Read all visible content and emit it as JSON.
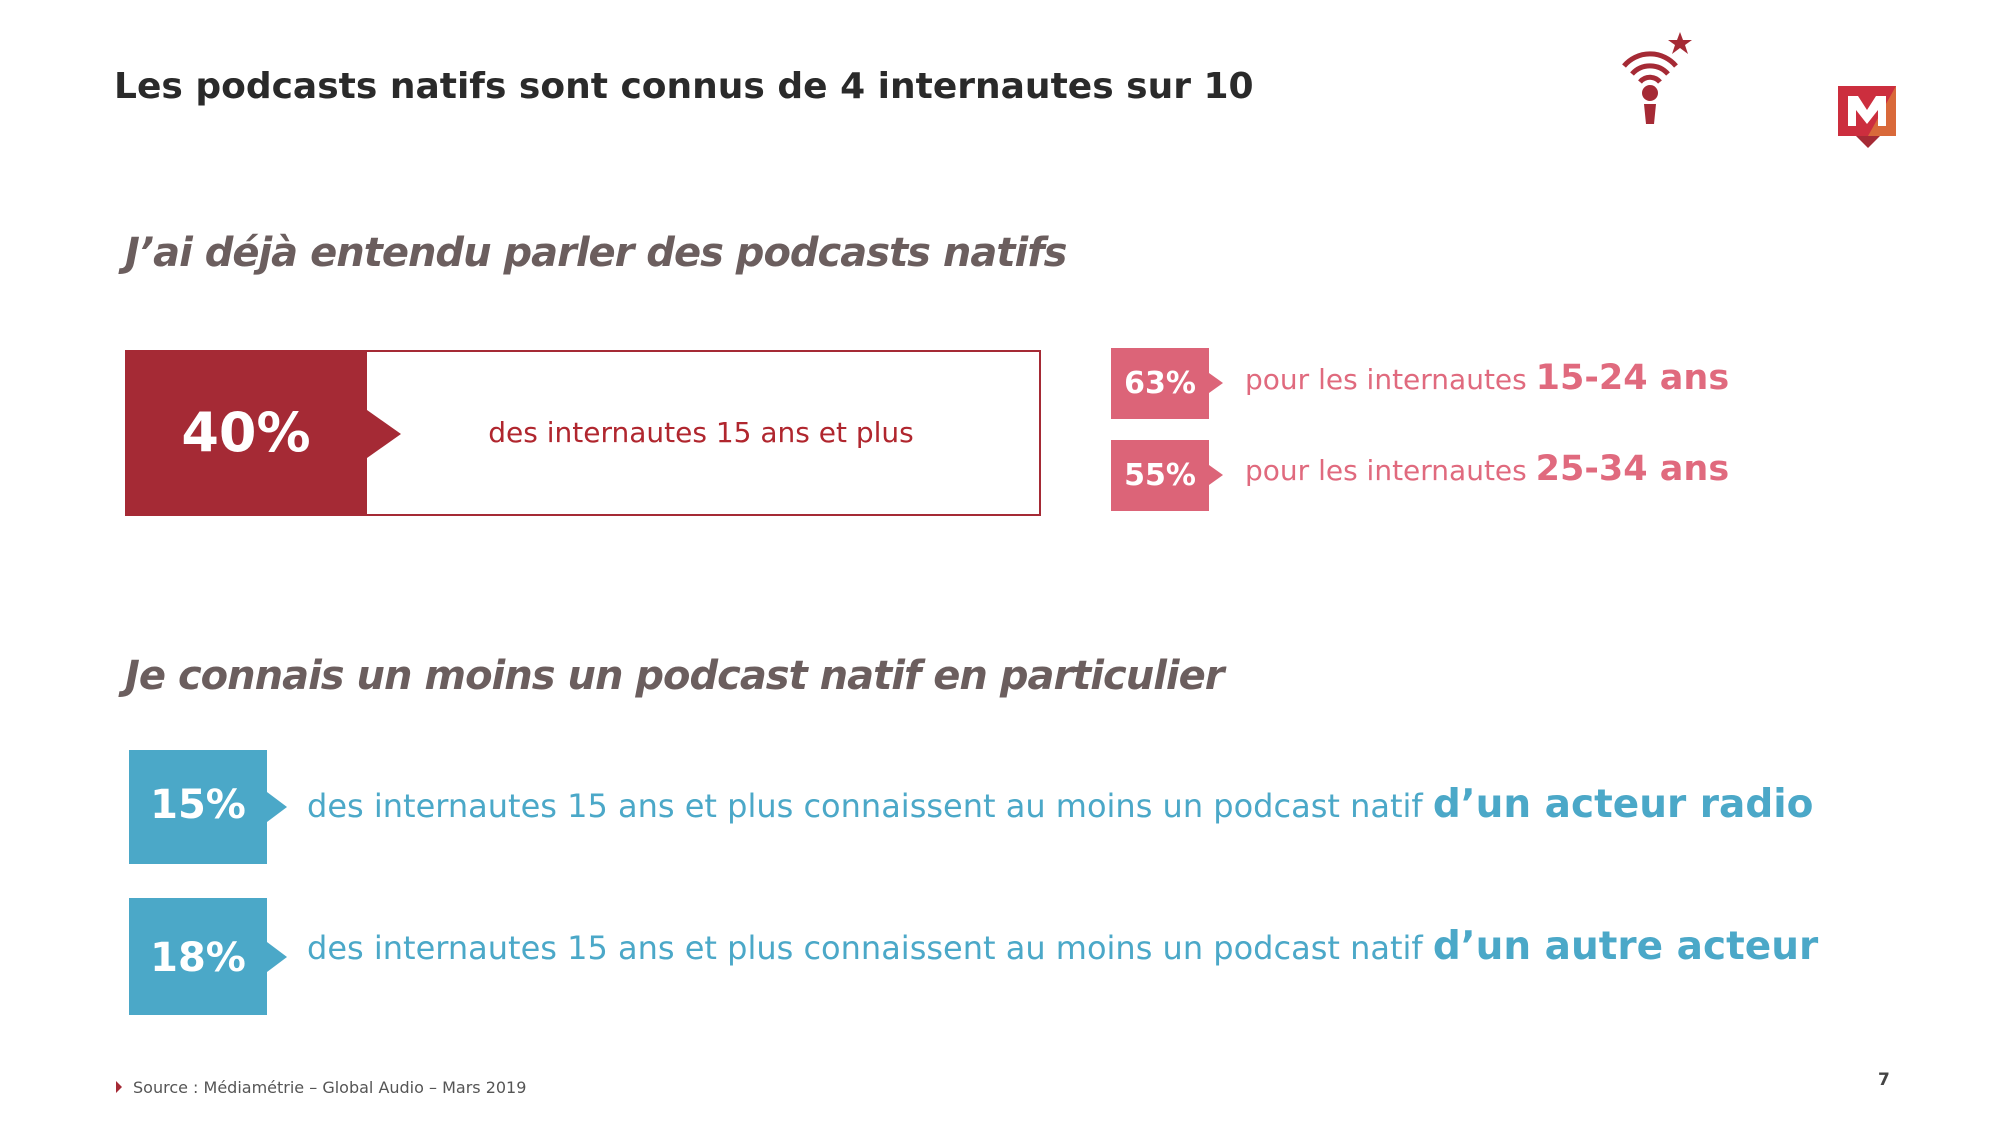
{
  "title": "Les podcasts natifs sont connus de 4 internautes sur 10",
  "section1": {
    "heading": "J’ai déjà entendu parler des podcasts natifs",
    "main": {
      "value": "40%",
      "label": "des internautes 15 ans et plus"
    },
    "breakdown": [
      {
        "value": "63%",
        "label": "pour les internautes ",
        "age": "15-24 ans"
      },
      {
        "value": "55%",
        "label": "pour les internautes ",
        "age": "25-34 ans"
      }
    ]
  },
  "section2": {
    "heading": "Je connais un moins un podcast natif en particulier",
    "items": [
      {
        "value": "15%",
        "label": "des internautes 15 ans et plus connaissent au moins un podcast natif ",
        "emphasis": "d’un acteur radio"
      },
      {
        "value": "18%",
        "label": "des internautes 15 ans et plus connaissent au moins un podcast natif ",
        "emphasis": "d’un autre acteur"
      }
    ]
  },
  "footer": {
    "source": "Source : Médiamétrie – Global Audio – Mars 2019",
    "page": "7"
  },
  "colors": {
    "dark_red": "#a52a35",
    "pink": "#dc6478",
    "blue": "#4ba8c8",
    "orange": "#d9693a"
  }
}
